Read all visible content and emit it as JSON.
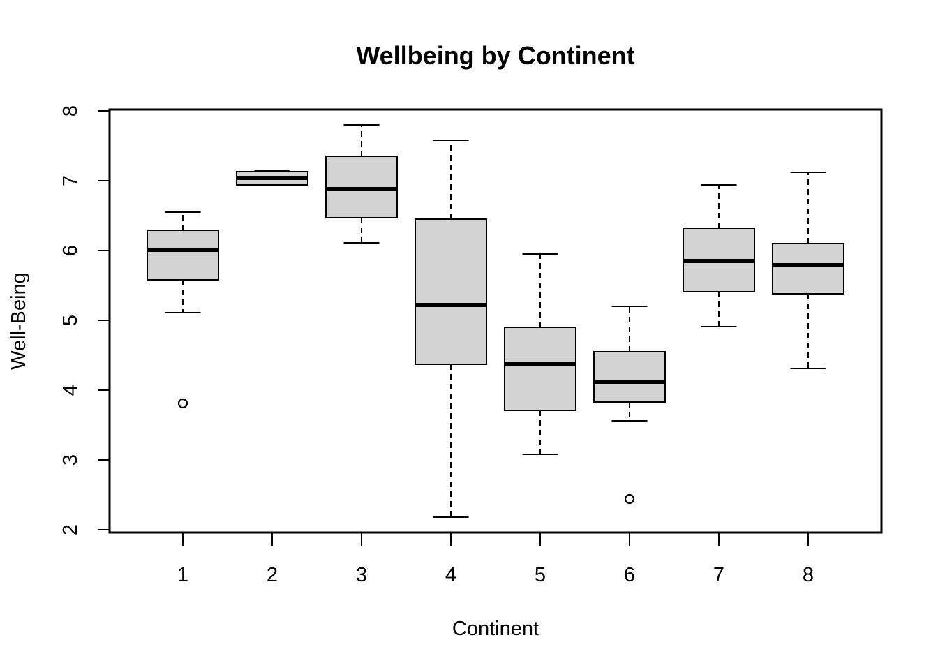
{
  "chart_data": {
    "type": "boxplot",
    "title": "Wellbeing by Continent",
    "xlabel": "Continent",
    "ylabel": "Well-Being",
    "ylim": [
      2,
      8
    ],
    "yticks": [
      2,
      3,
      4,
      5,
      6,
      7,
      8
    ],
    "categories": [
      "1",
      "2",
      "3",
      "4",
      "5",
      "6",
      "7",
      "8"
    ],
    "box_fill": "#d3d3d3",
    "boxes": [
      {
        "category": "1",
        "whisker_low": 5.11,
        "q1": 5.58,
        "median": 6.01,
        "q3": 6.29,
        "whisker_high": 6.55,
        "outliers": [
          3.81
        ]
      },
      {
        "category": "2",
        "whisker_low": 6.94,
        "q1": 6.94,
        "median": 7.04,
        "q3": 7.13,
        "whisker_high": 7.14,
        "outliers": []
      },
      {
        "category": "3",
        "whisker_low": 6.11,
        "q1": 6.47,
        "median": 6.88,
        "q3": 7.35,
        "whisker_high": 7.8,
        "outliers": []
      },
      {
        "category": "4",
        "whisker_low": 2.18,
        "q1": 4.37,
        "median": 5.22,
        "q3": 6.45,
        "whisker_high": 7.58,
        "outliers": []
      },
      {
        "category": "5",
        "whisker_low": 3.08,
        "q1": 3.71,
        "median": 4.37,
        "q3": 4.9,
        "whisker_high": 5.95,
        "outliers": []
      },
      {
        "category": "6",
        "whisker_low": 3.56,
        "q1": 3.83,
        "median": 4.12,
        "q3": 4.55,
        "whisker_high": 5.2,
        "outliers": [
          2.44
        ]
      },
      {
        "category": "7",
        "whisker_low": 4.91,
        "q1": 5.41,
        "median": 5.85,
        "q3": 6.32,
        "whisker_high": 6.94,
        "outliers": []
      },
      {
        "category": "8",
        "whisker_low": 4.31,
        "q1": 5.38,
        "median": 5.79,
        "q3": 6.1,
        "whisker_high": 7.12,
        "outliers": []
      }
    ]
  }
}
